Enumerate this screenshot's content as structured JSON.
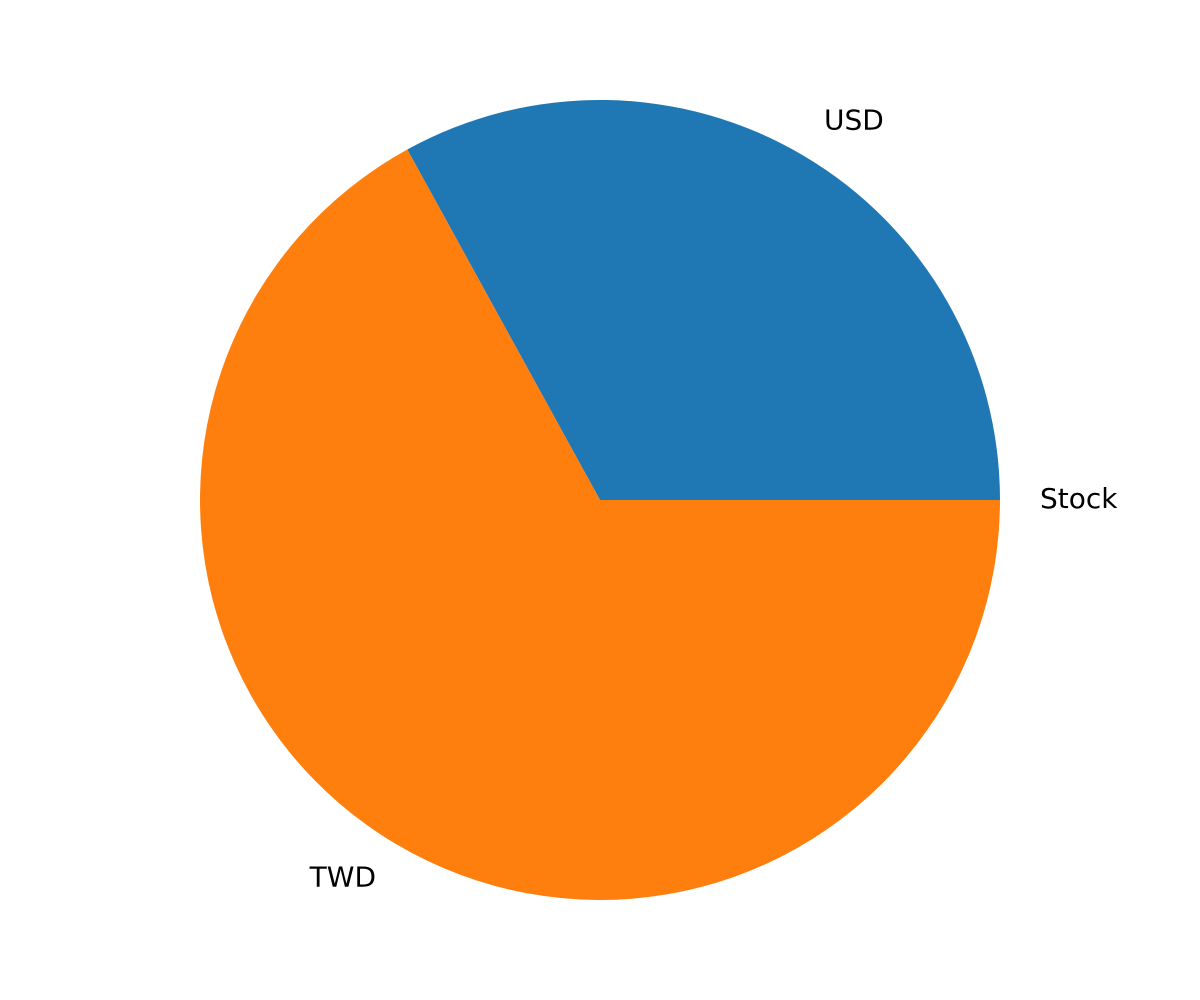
{
  "chart_data": {
    "type": "pie",
    "title": "",
    "categories": [
      "Stock",
      "USD",
      "TWD"
    ],
    "values": [
      0,
      33,
      67
    ],
    "colors": [
      "#2ca02c",
      "#1f77b4",
      "#ff7f0e"
    ],
    "start_angle": 0,
    "direction": "counterclockwise",
    "legend": "none"
  }
}
